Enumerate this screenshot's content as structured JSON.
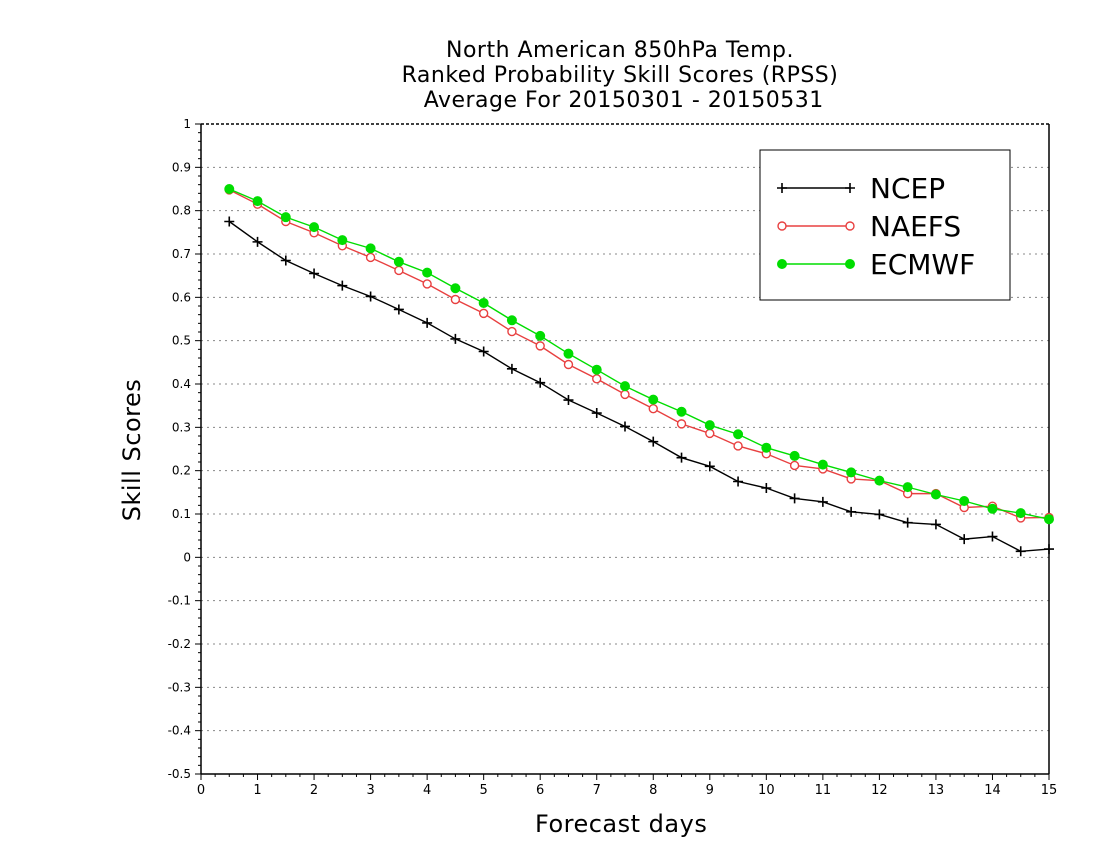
{
  "chart_data": {
    "type": "line",
    "title": [
      "North American 850hPa Temp.",
      "Ranked Probability Skill Scores (RPSS)",
      " Average For 20150301 - 20150531"
    ],
    "xlabel": "Forecast days",
    "ylabel": "Skill Scores",
    "xlim": [
      0,
      15
    ],
    "ylim": [
      -0.5,
      1
    ],
    "xticks": [
      "0",
      "1",
      "2",
      "3",
      "4",
      "5",
      "6",
      "7",
      "8",
      "9",
      "10",
      "11",
      "12",
      "13",
      "14",
      "15"
    ],
    "yticks": [
      "-0.5",
      "-0.4",
      "-0.3",
      "-0.2",
      "-0.1",
      "0",
      "0.1",
      "0.2",
      "0.3",
      "0.4",
      "0.5",
      "0.6",
      "0.7",
      "0.8",
      "0.9",
      "1"
    ],
    "grid": "horizontal-dotted",
    "legend_position": "top-right",
    "x": [
      0.5,
      1,
      1.5,
      2,
      2.5,
      3,
      3.5,
      4,
      4.5,
      5,
      5.5,
      6,
      6.5,
      7,
      7.5,
      8,
      8.5,
      9,
      9.5,
      10,
      10.5,
      11,
      11.5,
      12,
      12.5,
      13,
      13.5,
      14,
      14.5,
      15
    ],
    "series": [
      {
        "name": "NCEP",
        "color": "#000000",
        "marker": "plus",
        "values": [
          0.775,
          0.728,
          0.685,
          0.655,
          0.627,
          0.602,
          0.572,
          0.541,
          0.504,
          0.475,
          0.435,
          0.403,
          0.363,
          0.333,
          0.302,
          0.267,
          0.23,
          0.21,
          0.175,
          0.16,
          0.136,
          0.128,
          0.105,
          0.099,
          0.08,
          0.076,
          0.042,
          0.048,
          0.014,
          0.019
        ]
      },
      {
        "name": "NAEFS",
        "color": "#e84040",
        "marker": "open-circle",
        "values": [
          0.848,
          0.815,
          0.775,
          0.749,
          0.719,
          0.692,
          0.662,
          0.631,
          0.595,
          0.563,
          0.521,
          0.488,
          0.445,
          0.412,
          0.376,
          0.343,
          0.308,
          0.286,
          0.257,
          0.239,
          0.212,
          0.204,
          0.181,
          0.177,
          0.147,
          0.147,
          0.115,
          0.118,
          0.091,
          0.092
        ]
      },
      {
        "name": "ECMWF",
        "color": "#00dd00",
        "marker": "filled-circle",
        "values": [
          0.85,
          0.822,
          0.785,
          0.762,
          0.732,
          0.713,
          0.682,
          0.657,
          0.621,
          0.587,
          0.547,
          0.511,
          0.47,
          0.433,
          0.395,
          0.364,
          0.336,
          0.305,
          0.284,
          0.253,
          0.234,
          0.214,
          0.196,
          0.177,
          0.162,
          0.145,
          0.13,
          0.112,
          0.102,
          0.088
        ]
      }
    ]
  }
}
